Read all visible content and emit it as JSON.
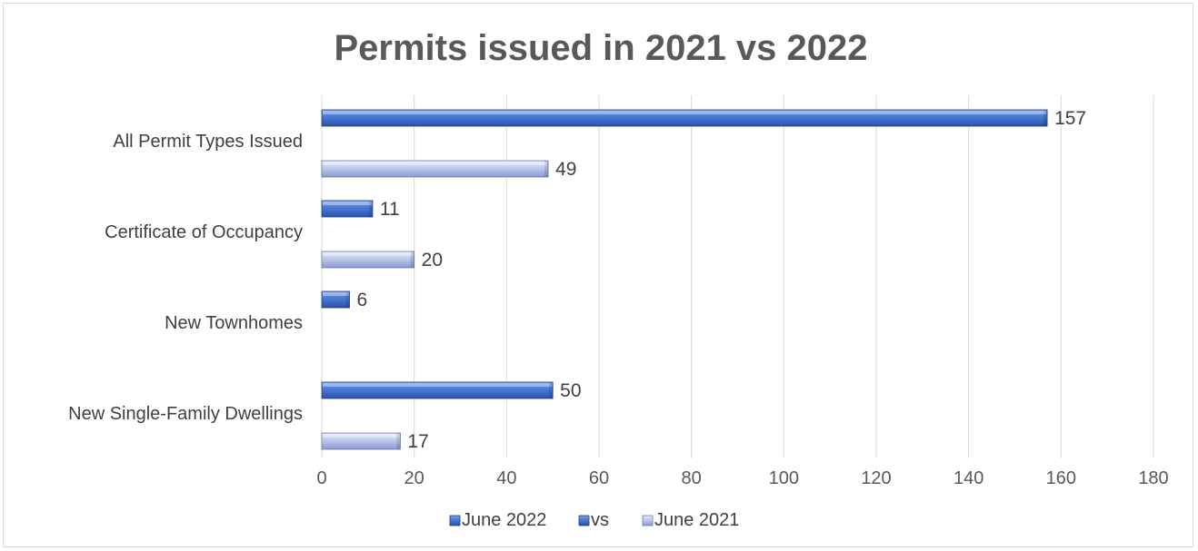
{
  "chart_data": {
    "type": "bar",
    "orientation": "horizontal",
    "title": "Permits issued in 2021 vs 2022",
    "categories": [
      "All Permit Types Issued",
      "Certificate of Occupancy",
      "New Townhomes",
      "New Single-Family Dwellings"
    ],
    "series": [
      {
        "name": "June 2022",
        "values": [
          157,
          11,
          6,
          50
        ],
        "color": "#4472c4"
      },
      {
        "name": "vs",
        "values": [
          null,
          null,
          null,
          null
        ],
        "color": "#4472c4"
      },
      {
        "name": "June 2021",
        "values": [
          49,
          20,
          null,
          17
        ],
        "color": "#b4c0e6"
      }
    ],
    "xlim": [
      0,
      180
    ],
    "xticks": [
      0,
      20,
      40,
      60,
      80,
      100,
      120,
      140,
      160,
      180
    ],
    "grid": true,
    "legend": "bottom",
    "data_labels": true
  }
}
